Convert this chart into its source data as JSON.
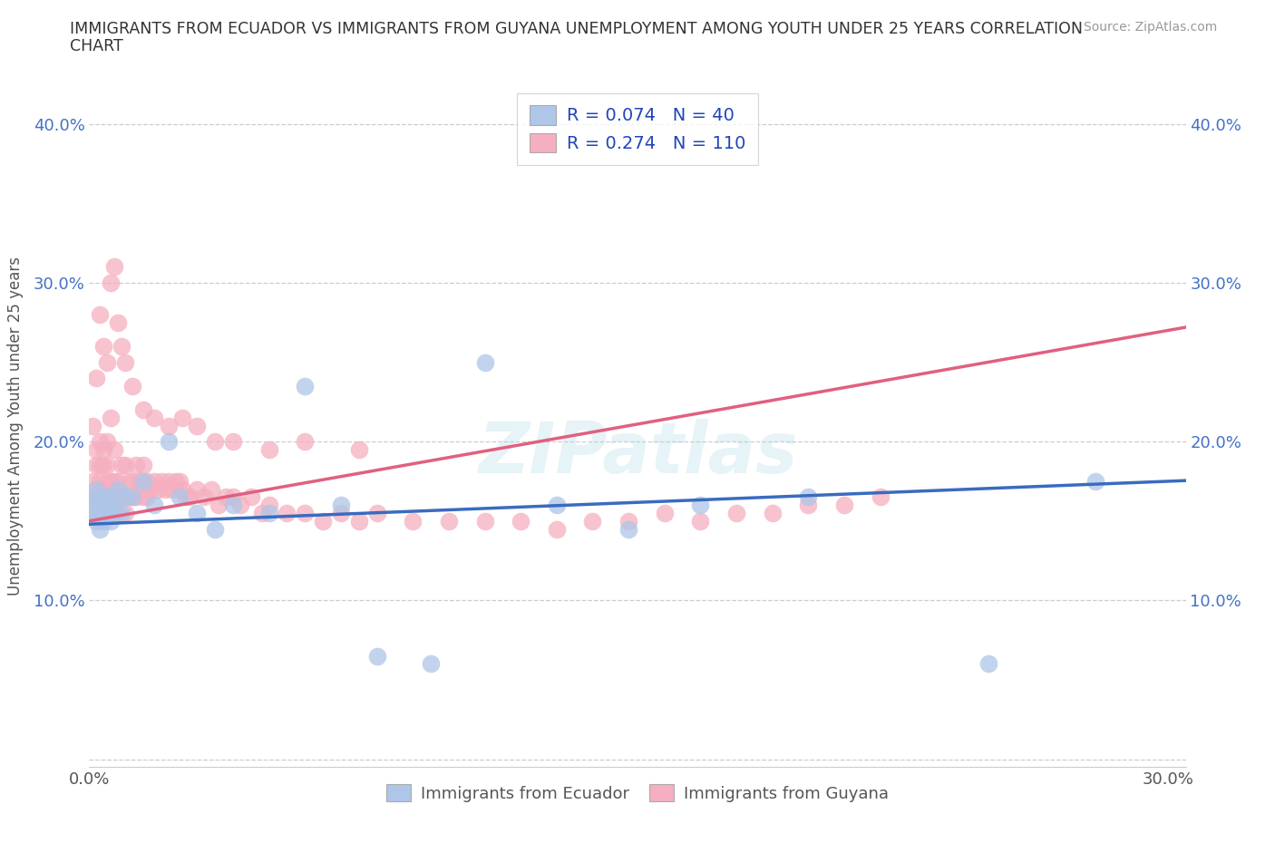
{
  "title_line1": "IMMIGRANTS FROM ECUADOR VS IMMIGRANTS FROM GUYANA UNEMPLOYMENT AMONG YOUTH UNDER 25 YEARS CORRELATION",
  "title_line2": "CHART",
  "source": "Source: ZipAtlas.com",
  "ylabel": "Unemployment Among Youth under 25 years",
  "xlim": [
    0.0,
    0.305
  ],
  "ylim": [
    -0.005,
    0.425
  ],
  "xticks": [
    0.0,
    0.05,
    0.1,
    0.15,
    0.2,
    0.25,
    0.3
  ],
  "yticks": [
    0.0,
    0.1,
    0.2,
    0.3,
    0.4
  ],
  "ecuador_color": "#aec6e8",
  "guyana_color": "#f5afc0",
  "ecuador_line_color": "#3a6bbf",
  "guyana_line_color": "#e06080",
  "ecuador_R": 0.074,
  "ecuador_N": 40,
  "guyana_R": 0.274,
  "guyana_N": 110,
  "watermark": "ZIPatlas",
  "ecuador_x": [
    0.001,
    0.001,
    0.002,
    0.002,
    0.002,
    0.003,
    0.003,
    0.003,
    0.004,
    0.004,
    0.004,
    0.005,
    0.005,
    0.006,
    0.006,
    0.007,
    0.007,
    0.008,
    0.009,
    0.01,
    0.012,
    0.015,
    0.018,
    0.022,
    0.025,
    0.03,
    0.035,
    0.04,
    0.05,
    0.06,
    0.07,
    0.08,
    0.095,
    0.11,
    0.13,
    0.15,
    0.17,
    0.2,
    0.25,
    0.28
  ],
  "ecuador_y": [
    0.16,
    0.155,
    0.165,
    0.15,
    0.17,
    0.155,
    0.16,
    0.145,
    0.165,
    0.155,
    0.15,
    0.16,
    0.155,
    0.15,
    0.165,
    0.155,
    0.16,
    0.17,
    0.155,
    0.165,
    0.165,
    0.175,
    0.16,
    0.2,
    0.165,
    0.155,
    0.145,
    0.16,
    0.155,
    0.235,
    0.16,
    0.065,
    0.06,
    0.25,
    0.16,
    0.145,
    0.16,
    0.165,
    0.06,
    0.175
  ],
  "guyana_x": [
    0.001,
    0.001,
    0.001,
    0.002,
    0.002,
    0.002,
    0.002,
    0.003,
    0.003,
    0.003,
    0.003,
    0.003,
    0.004,
    0.004,
    0.004,
    0.004,
    0.005,
    0.005,
    0.005,
    0.005,
    0.005,
    0.006,
    0.006,
    0.006,
    0.006,
    0.007,
    0.007,
    0.007,
    0.007,
    0.008,
    0.008,
    0.008,
    0.009,
    0.009,
    0.01,
    0.01,
    0.01,
    0.011,
    0.011,
    0.012,
    0.012,
    0.013,
    0.013,
    0.014,
    0.015,
    0.015,
    0.016,
    0.016,
    0.017,
    0.018,
    0.019,
    0.02,
    0.021,
    0.022,
    0.023,
    0.024,
    0.025,
    0.026,
    0.027,
    0.028,
    0.03,
    0.032,
    0.034,
    0.036,
    0.038,
    0.04,
    0.042,
    0.045,
    0.048,
    0.05,
    0.055,
    0.06,
    0.065,
    0.07,
    0.075,
    0.08,
    0.09,
    0.1,
    0.11,
    0.12,
    0.13,
    0.14,
    0.15,
    0.16,
    0.17,
    0.18,
    0.19,
    0.2,
    0.21,
    0.22,
    0.002,
    0.003,
    0.004,
    0.005,
    0.006,
    0.007,
    0.008,
    0.009,
    0.01,
    0.012,
    0.015,
    0.018,
    0.022,
    0.026,
    0.03,
    0.035,
    0.04,
    0.05,
    0.06,
    0.075
  ],
  "guyana_y": [
    0.165,
    0.175,
    0.21,
    0.155,
    0.165,
    0.185,
    0.195,
    0.155,
    0.165,
    0.175,
    0.185,
    0.2,
    0.155,
    0.17,
    0.185,
    0.195,
    0.155,
    0.165,
    0.175,
    0.185,
    0.2,
    0.155,
    0.165,
    0.175,
    0.215,
    0.155,
    0.165,
    0.175,
    0.195,
    0.155,
    0.165,
    0.175,
    0.165,
    0.185,
    0.155,
    0.165,
    0.185,
    0.165,
    0.175,
    0.165,
    0.175,
    0.165,
    0.185,
    0.175,
    0.165,
    0.185,
    0.165,
    0.175,
    0.17,
    0.175,
    0.17,
    0.175,
    0.17,
    0.175,
    0.17,
    0.175,
    0.175,
    0.17,
    0.165,
    0.165,
    0.17,
    0.165,
    0.17,
    0.16,
    0.165,
    0.165,
    0.16,
    0.165,
    0.155,
    0.16,
    0.155,
    0.155,
    0.15,
    0.155,
    0.15,
    0.155,
    0.15,
    0.15,
    0.15,
    0.15,
    0.145,
    0.15,
    0.15,
    0.155,
    0.15,
    0.155,
    0.155,
    0.16,
    0.16,
    0.165,
    0.24,
    0.28,
    0.26,
    0.25,
    0.3,
    0.31,
    0.275,
    0.26,
    0.25,
    0.235,
    0.22,
    0.215,
    0.21,
    0.215,
    0.21,
    0.2,
    0.2,
    0.195,
    0.2,
    0.195
  ]
}
